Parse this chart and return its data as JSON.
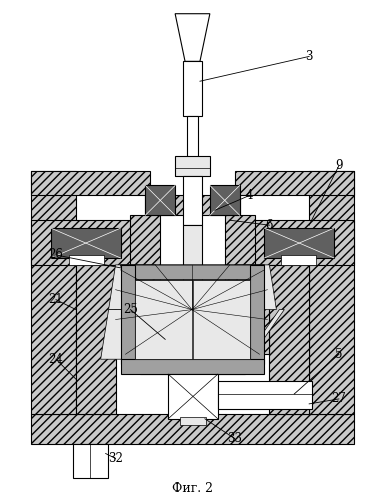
{
  "title": "Фиг. 2",
  "bg_color": "#ffffff",
  "line_color": "#000000",
  "fig_width": 3.85,
  "fig_height": 5.0,
  "dpi": 100,
  "hatch_gray": "#c8c8c8",
  "mid_gray": "#a0a0a0",
  "dark_gray": "#606060",
  "light_gray": "#e8e8e8",
  "white": "#ffffff"
}
